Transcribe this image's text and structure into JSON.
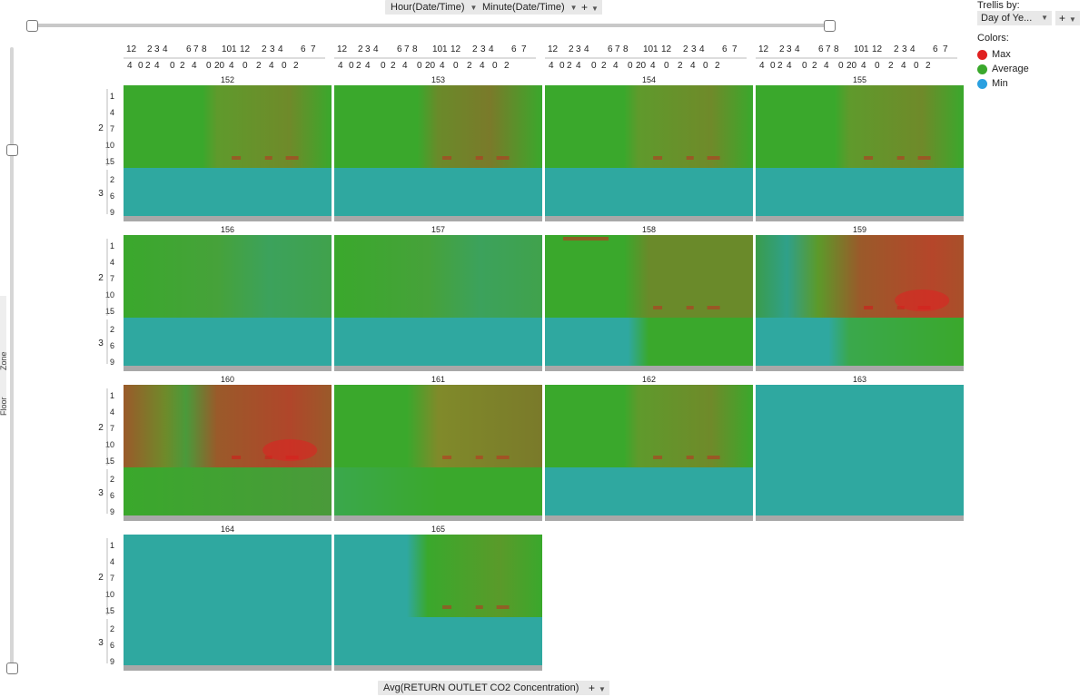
{
  "toolbar": {
    "x_axis_1": "Hour(Date/Time)",
    "x_axis_2": "Minute(Date/Time)",
    "plus": "+",
    "color_axis": "Avg(RETURN OUTLET CO2 Concentration)"
  },
  "trellis": {
    "title": "Trellis by:",
    "selected": "Day of Ye...",
    "plus": "+"
  },
  "legend": {
    "title": "Colors:",
    "items": [
      {
        "label": "Max",
        "color": "#e02020"
      },
      {
        "label": "Average",
        "color": "#3aa82c"
      },
      {
        "label": "Min",
        "color": "#2aa0e0"
      }
    ]
  },
  "side_labels": {
    "zone": "Zone",
    "floor": "Floor"
  },
  "chart_data": {
    "type": "heatmap",
    "trellis_by": "Day of Year",
    "color_by": "Avg(RETURN OUTLET CO2 Concentration)",
    "x_axis": {
      "levels": [
        "Hour(Date/Time)",
        "Minute(Date/Time)"
      ],
      "hour_labels": [
        "12",
        "2",
        "3",
        "4",
        "6",
        "7",
        "8",
        "10",
        "1",
        "12",
        "2",
        "3",
        "4",
        "6",
        "7"
      ],
      "minute_labels": [
        "4",
        "0",
        "2",
        "4",
        "0",
        "2",
        "4",
        "0",
        "20",
        "4",
        "0",
        "2",
        "4",
        "0",
        "2"
      ]
    },
    "y_axis": {
      "levels": [
        "Floor",
        "Zone"
      ],
      "groups": [
        {
          "floor": "2",
          "zones": [
            "1",
            "4",
            "7",
            "10",
            "15"
          ]
        },
        {
          "floor": "3",
          "zones": [
            "2",
            "6",
            "9"
          ]
        }
      ]
    },
    "color_scale": {
      "min": "#2aa0e0",
      "average": "#3aa82c",
      "max": "#e02020"
    },
    "panels": [
      {
        "day": "152",
        "pattern": "light_afternoon"
      },
      {
        "day": "153",
        "pattern": "hotspot_afternoon"
      },
      {
        "day": "154",
        "pattern": "light_afternoon"
      },
      {
        "day": "155",
        "pattern": "light_afternoon"
      },
      {
        "day": "156",
        "pattern": "faint"
      },
      {
        "day": "157",
        "pattern": "faint"
      },
      {
        "day": "158",
        "pattern": "light_afternoon_top"
      },
      {
        "day": "159",
        "pattern": "strong_afternoon"
      },
      {
        "day": "160",
        "pattern": "strong_all_day"
      },
      {
        "day": "161",
        "pattern": "medium_afternoon"
      },
      {
        "day": "162",
        "pattern": "light_afternoon"
      },
      {
        "day": "163",
        "pattern": "min_all"
      },
      {
        "day": "164",
        "pattern": "min_all"
      },
      {
        "day": "165",
        "pattern": "late_start"
      }
    ]
  }
}
